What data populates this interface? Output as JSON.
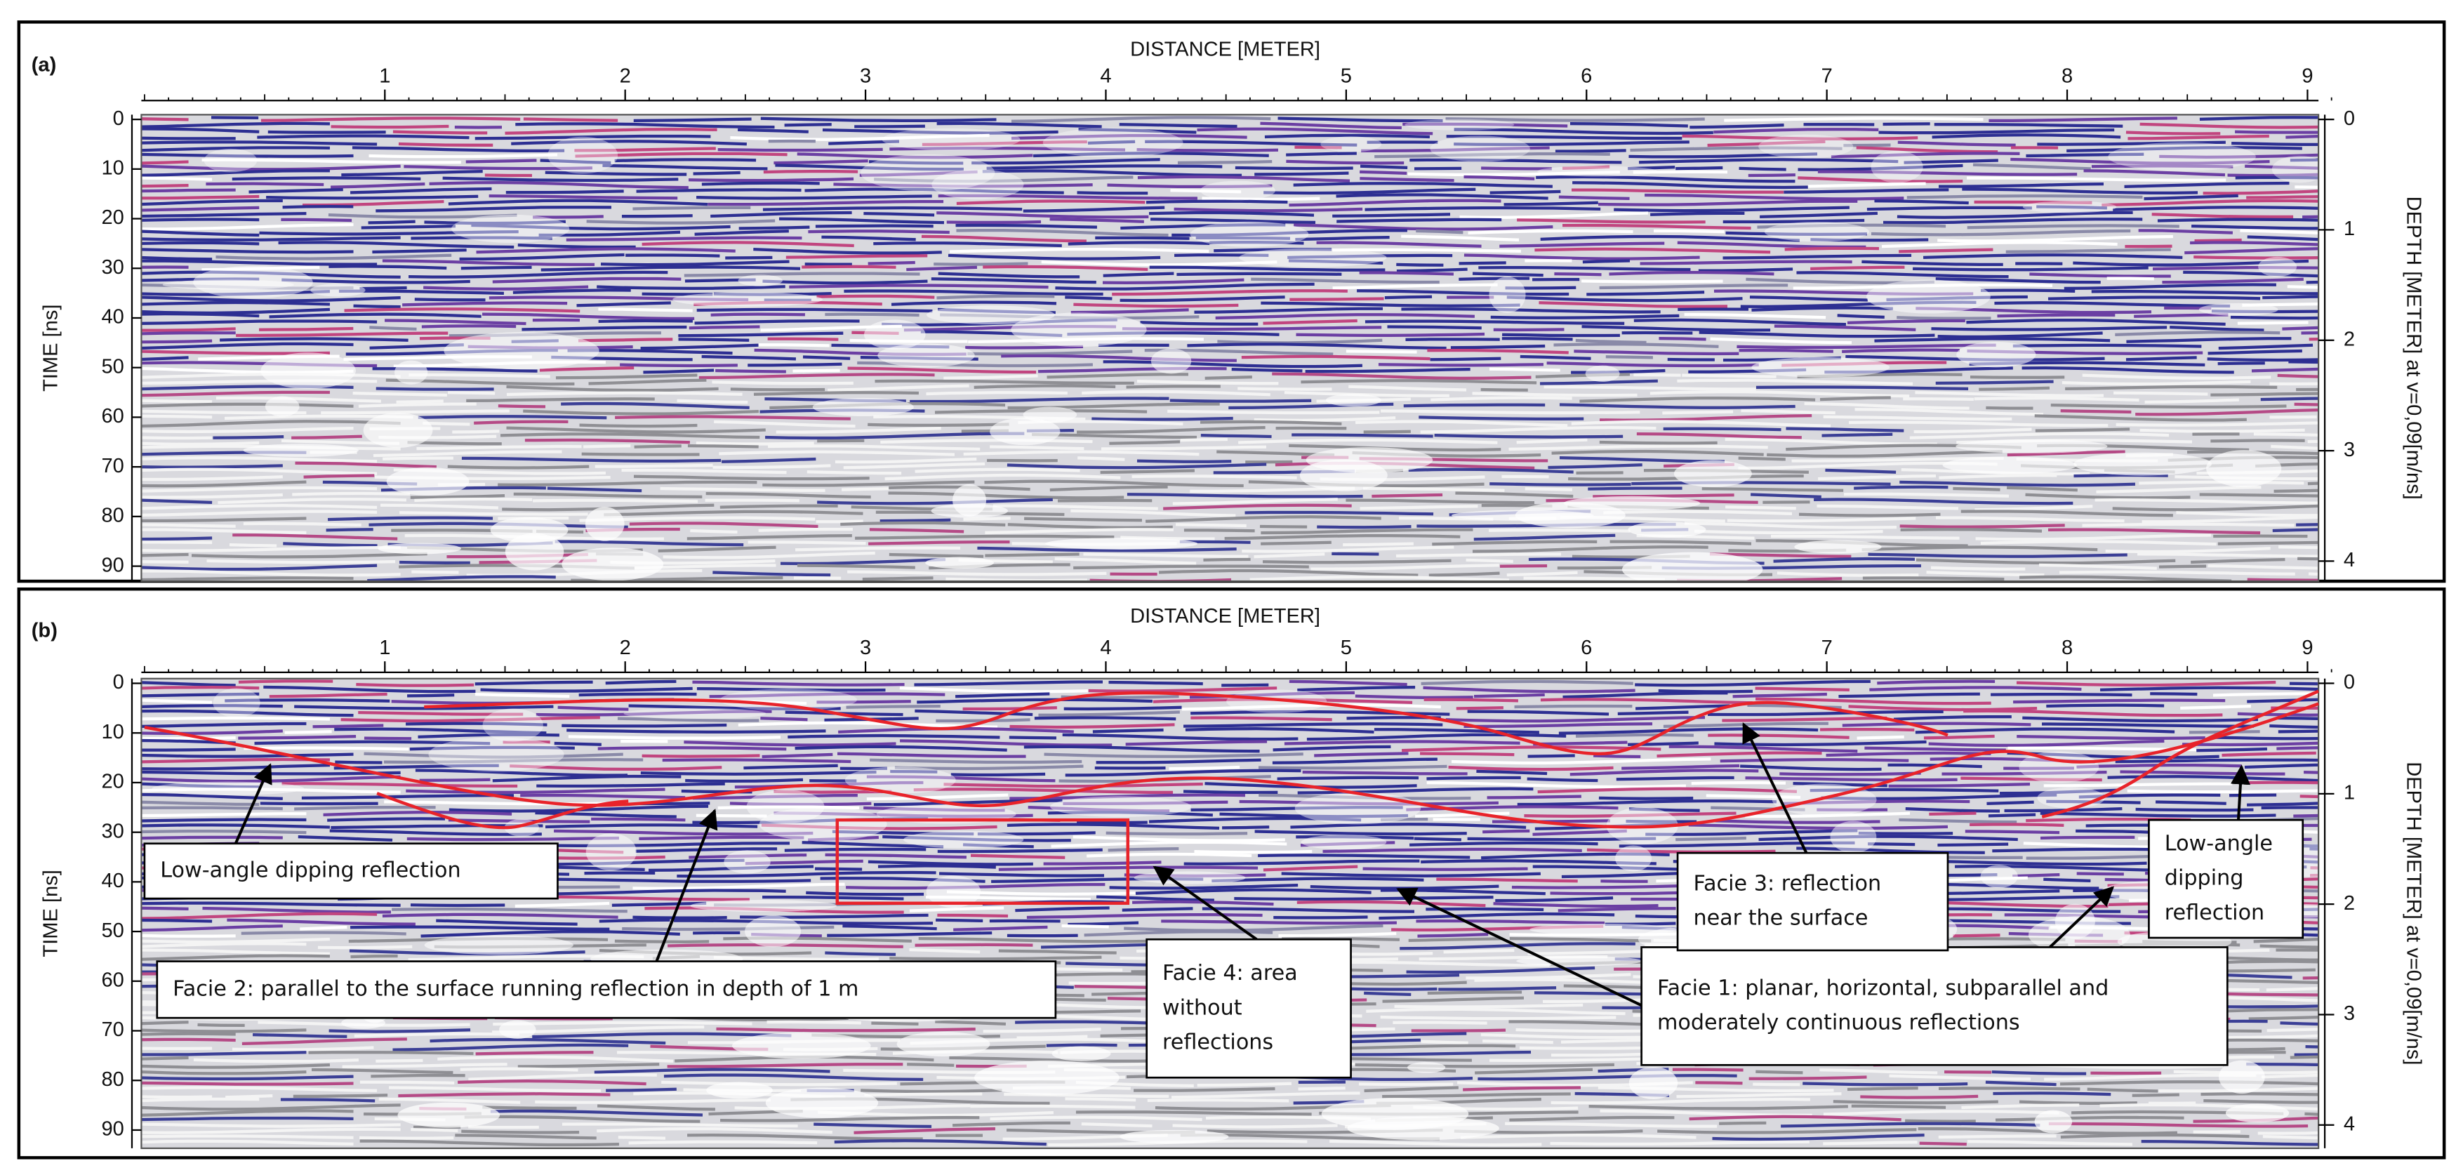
{
  "figure": {
    "panels": [
      {
        "label": "(a)",
        "x_label": "DISTANCE [METER]",
        "x_ticks": [
          1,
          2,
          3,
          4,
          5,
          6,
          7,
          8,
          9
        ],
        "y_label": "TIME [ns]",
        "y_ticks": [
          0,
          10,
          20,
          30,
          40,
          50,
          60,
          70,
          80,
          90
        ],
        "y2_label": "DEPTH [METER] at v=0,09[m/ns]",
        "y2_ticks": [
          0,
          1,
          2,
          3,
          4
        ]
      },
      {
        "label": "(b)",
        "x_label": "DISTANCE [METER]",
        "x_ticks": [
          1,
          2,
          3,
          4,
          5,
          6,
          7,
          8,
          9
        ],
        "y_label": "TIME [ns]",
        "y_ticks": [
          0,
          10,
          20,
          30,
          40,
          50,
          60,
          70,
          80,
          90
        ],
        "y2_label": "DEPTH [METER] at v=0,09[m/ns]",
        "y2_ticks": [
          0,
          1,
          2,
          3,
          4
        ],
        "annotations": [
          {
            "lines": [
              "Low-angle dipping reflection"
            ]
          },
          {
            "lines": [
              "Facie 2: parallel to the surface running  reflection in depth of 1 m"
            ]
          },
          {
            "lines": [
              "Facie 4: area",
              "without",
              "reflections"
            ]
          },
          {
            "lines": [
              "Facie 1: planar, horizontal, subparallel and",
              "moderately continuous reflections"
            ]
          },
          {
            "lines": [
              "Facie 3: reflection",
              "near the surface"
            ]
          },
          {
            "lines": [
              "Low-angle",
              "dipping",
              "reflection"
            ]
          }
        ]
      }
    ]
  }
}
